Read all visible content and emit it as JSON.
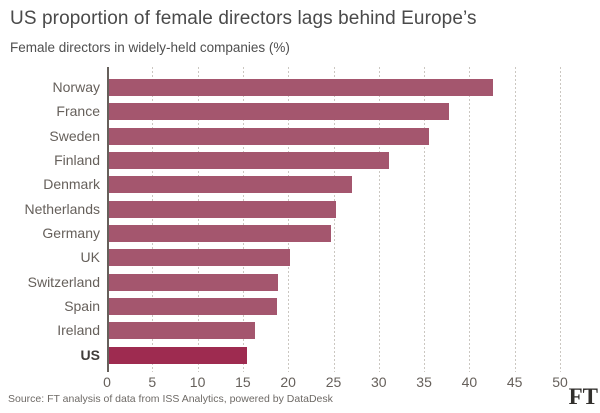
{
  "header": {
    "title": "US proportion of female directors lags behind Europe’s",
    "subtitle": "Female directors in widely-held companies (%)"
  },
  "chart_data": {
    "type": "bar",
    "orientation": "horizontal",
    "title": "US proportion of female directors lags behind Europe’s",
    "subtitle": "Female directors in widely-held companies (%)",
    "categories": [
      "Norway",
      "France",
      "Sweden",
      "Finland",
      "Denmark",
      "Netherlands",
      "Germany",
      "UK",
      "Switzerland",
      "Spain",
      "Ireland",
      "US"
    ],
    "values": [
      42.4,
      37.5,
      35.3,
      30.9,
      26.8,
      25.1,
      24.5,
      20.0,
      18.6,
      18.5,
      16.1,
      15.2
    ],
    "highlight_category": "US",
    "xlabel": "",
    "ylabel": "",
    "xlim": [
      0,
      50
    ],
    "x_ticks": [
      0,
      5,
      10,
      15,
      20,
      25,
      30,
      35,
      40,
      45,
      50
    ],
    "grid": "dotted-vertical",
    "legend": "none",
    "colors": {
      "bar": "#a4566e",
      "highlight_bar": "#9e2b50",
      "grid": "#cbc7c1",
      "axis": "#66605b",
      "tick_text": "#66605b",
      "title_text": "#4a4a4a"
    }
  },
  "footer": {
    "source": "Source: FT analysis of data from ISS Analytics, powered by DataDesk",
    "logo": "FT"
  }
}
